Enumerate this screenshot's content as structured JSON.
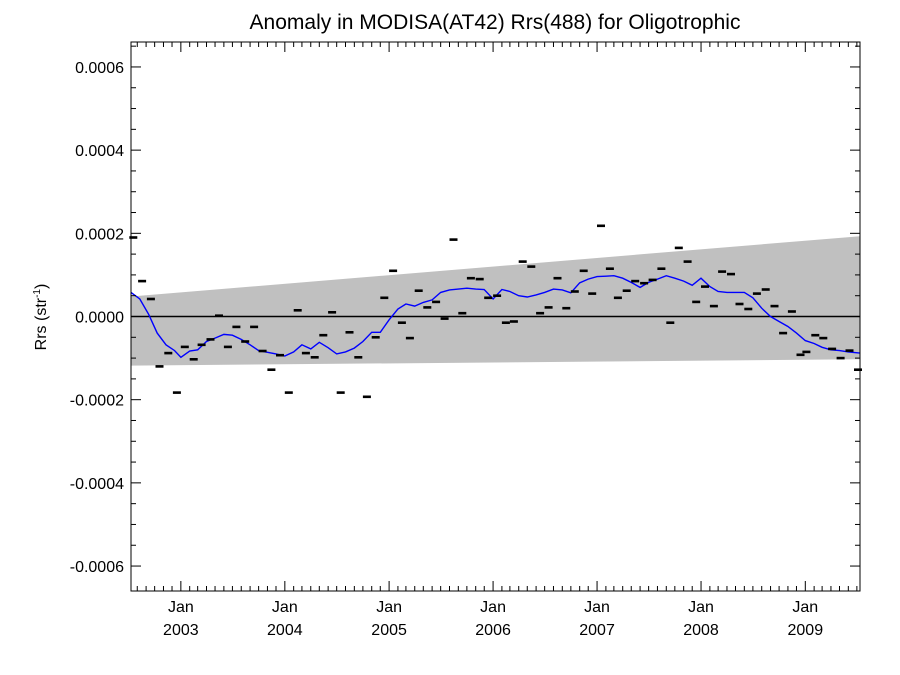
{
  "chart_data": {
    "type": "scatter",
    "title": "Anomaly in MODISA(AT42) Rrs(488) for Oligotrophic",
    "xlabel": "",
    "ylabel": "Rrs (str",
    "ylabel_superscript": "-1",
    "ylabel_suffix": ")",
    "ylim": [
      -0.00066,
      0.00066
    ],
    "xlim": [
      "2002-07-10",
      "2009-07-12"
    ],
    "yticks": [
      "0.0006",
      "0.0004",
      "0.0002",
      "0.0000",
      "-0.0002",
      "-0.0004",
      "-0.0006"
    ],
    "xticks": [
      {
        "month": "Jan",
        "year": "2003",
        "date": "2003-01-01"
      },
      {
        "month": "Jan",
        "year": "2004",
        "date": "2004-01-01"
      },
      {
        "month": "Jan",
        "year": "2005",
        "date": "2005-01-01"
      },
      {
        "month": "Jan",
        "year": "2006",
        "date": "2006-01-01"
      },
      {
        "month": "Jan",
        "year": "2007",
        "date": "2007-01-01"
      },
      {
        "month": "Jan",
        "year": "2008",
        "date": "2008-01-01"
      },
      {
        "month": "Jan",
        "year": "2009",
        "date": "2009-01-01"
      }
    ],
    "grid": false,
    "colors": {
      "band": "#c0c0c0",
      "line": "#0000ff",
      "points": "#000000",
      "zero": "#000000"
    },
    "band": {
      "upper": [
        [
          "2002-07-10",
          4.8e-05
        ],
        [
          "2009-07-12",
          0.000193
        ]
      ],
      "lower": [
        [
          "2002-07-10",
          -0.000118
        ],
        [
          "2009-07-12",
          -0.000103
        ]
      ]
    },
    "points": [
      [
        "2002-07-18",
        0.00019
      ],
      [
        "2002-08-18",
        8.5e-05
      ],
      [
        "2002-09-18",
        4.2e-05
      ],
      [
        "2002-10-18",
        -0.00012
      ],
      [
        "2002-11-18",
        -8.8e-05
      ],
      [
        "2002-12-18",
        -0.000183
      ],
      [
        "2003-01-15",
        -7.3e-05
      ],
      [
        "2003-02-15",
        -0.000103
      ],
      [
        "2003-03-15",
        -6.8e-05
      ],
      [
        "2003-04-15",
        -5.5e-05
      ],
      [
        "2003-05-15",
        2e-06
      ],
      [
        "2003-06-15",
        -7.3e-05
      ],
      [
        "2003-07-15",
        -2.5e-05
      ],
      [
        "2003-08-15",
        -6e-05
      ],
      [
        "2003-09-15",
        -2.5e-05
      ],
      [
        "2003-10-15",
        -8.3e-05
      ],
      [
        "2003-11-15",
        -0.000128
      ],
      [
        "2003-12-15",
        -9.3e-05
      ],
      [
        "2004-01-15",
        -0.000183
      ],
      [
        "2004-02-15",
        1.5e-05
      ],
      [
        "2004-03-15",
        -8.8e-05
      ],
      [
        "2004-04-15",
        -9.8e-05
      ],
      [
        "2004-05-15",
        -4.5e-05
      ],
      [
        "2004-06-15",
        1e-05
      ],
      [
        "2004-07-15",
        -0.000183
      ],
      [
        "2004-08-15",
        -3.8e-05
      ],
      [
        "2004-09-15",
        -9.8e-05
      ],
      [
        "2004-10-15",
        -0.000193
      ],
      [
        "2004-11-15",
        -5e-05
      ],
      [
        "2004-12-15",
        4.5e-05
      ],
      [
        "2005-01-15",
        0.00011
      ],
      [
        "2005-02-15",
        -1.5e-05
      ],
      [
        "2005-03-15",
        -5.2e-05
      ],
      [
        "2005-04-15",
        6.2e-05
      ],
      [
        "2005-05-15",
        2.2e-05
      ],
      [
        "2005-06-15",
        3.5e-05
      ],
      [
        "2005-07-15",
        -5e-06
      ],
      [
        "2005-08-15",
        0.000185
      ],
      [
        "2005-09-15",
        8e-06
      ],
      [
        "2005-10-15",
        9.2e-05
      ],
      [
        "2005-11-15",
        9e-05
      ],
      [
        "2005-12-15",
        4.5e-05
      ],
      [
        "2006-01-15",
        5e-05
      ],
      [
        "2006-02-15",
        -1.5e-05
      ],
      [
        "2006-03-15",
        -1.2e-05
      ],
      [
        "2006-04-15",
        0.000132
      ],
      [
        "2006-05-15",
        0.00012
      ],
      [
        "2006-06-15",
        8e-06
      ],
      [
        "2006-07-15",
        2.2e-05
      ],
      [
        "2006-08-15",
        9.2e-05
      ],
      [
        "2006-09-15",
        2e-05
      ],
      [
        "2006-10-15",
        6e-05
      ],
      [
        "2006-11-15",
        0.00011
      ],
      [
        "2006-12-15",
        5.5e-05
      ],
      [
        "2007-01-15",
        0.000218
      ],
      [
        "2007-02-15",
        0.000115
      ],
      [
        "2007-03-15",
        4.5e-05
      ],
      [
        "2007-04-15",
        6.2e-05
      ],
      [
        "2007-05-15",
        8.5e-05
      ],
      [
        "2007-06-15",
        8e-05
      ],
      [
        "2007-07-15",
        8.8e-05
      ],
      [
        "2007-08-15",
        0.000115
      ],
      [
        "2007-09-15",
        -1.5e-05
      ],
      [
        "2007-10-15",
        0.000165
      ],
      [
        "2007-11-15",
        0.000132
      ],
      [
        "2007-12-15",
        3.5e-05
      ],
      [
        "2008-01-15",
        7.2e-05
      ],
      [
        "2008-02-15",
        2.5e-05
      ],
      [
        "2008-03-15",
        0.000108
      ],
      [
        "2008-04-15",
        0.000102
      ],
      [
        "2008-05-15",
        3e-05
      ],
      [
        "2008-06-15",
        1.8e-05
      ],
      [
        "2008-07-15",
        5.5e-05
      ],
      [
        "2008-08-15",
        6.5e-05
      ],
      [
        "2008-09-15",
        2.5e-05
      ],
      [
        "2008-10-15",
        -4e-05
      ],
      [
        "2008-11-15",
        1.2e-05
      ],
      [
        "2008-12-15",
        -9.2e-05
      ],
      [
        "2009-01-05",
        -8.5e-05
      ],
      [
        "2009-02-05",
        -4.5e-05
      ],
      [
        "2009-03-05",
        -5.2e-05
      ],
      [
        "2009-04-05",
        -7.8e-05
      ],
      [
        "2009-05-05",
        -0.0001
      ],
      [
        "2009-06-05",
        -8.2e-05
      ],
      [
        "2009-07-05",
        -0.000128
      ]
    ],
    "series": [
      {
        "values": [
          [
            "2002-07-10",
            5.8e-05
          ],
          [
            "2002-08-10",
            4.2e-05
          ],
          [
            "2002-09-10",
            5e-06
          ],
          [
            "2002-10-10",
            -4e-05
          ],
          [
            "2002-11-10",
            -6.8e-05
          ],
          [
            "2002-12-10",
            -8.2e-05
          ],
          [
            "2003-01-01",
            -9.8e-05
          ],
          [
            "2003-02-01",
            -8.3e-05
          ],
          [
            "2003-03-01",
            -8e-05
          ],
          [
            "2003-04-01",
            -6e-05
          ],
          [
            "2003-05-01",
            -5.2e-05
          ],
          [
            "2003-06-01",
            -4.3e-05
          ],
          [
            "2003-07-01",
            -4.5e-05
          ],
          [
            "2003-08-01",
            -5.5e-05
          ],
          [
            "2003-09-01",
            -6.8e-05
          ],
          [
            "2003-10-01",
            -8.2e-05
          ],
          [
            "2003-11-01",
            -8.6e-05
          ],
          [
            "2003-12-01",
            -9e-05
          ],
          [
            "2004-01-01",
            -9.5e-05
          ],
          [
            "2004-02-01",
            -8.5e-05
          ],
          [
            "2004-03-01",
            -6.8e-05
          ],
          [
            "2004-04-01",
            -7.8e-05
          ],
          [
            "2004-05-01",
            -6.2e-05
          ],
          [
            "2004-06-01",
            -7.5e-05
          ],
          [
            "2004-07-01",
            -9e-05
          ],
          [
            "2004-08-01",
            -8.5e-05
          ],
          [
            "2004-09-01",
            -7.6e-05
          ],
          [
            "2004-10-01",
            -6e-05
          ],
          [
            "2004-11-01",
            -3.8e-05
          ],
          [
            "2004-12-01",
            -3.8e-05
          ],
          [
            "2005-01-01",
            -8e-06
          ],
          [
            "2005-02-01",
            1.8e-05
          ],
          [
            "2005-03-01",
            3e-05
          ],
          [
            "2005-04-01",
            2.5e-05
          ],
          [
            "2005-05-01",
            3.4e-05
          ],
          [
            "2005-06-01",
            4e-05
          ],
          [
            "2005-07-01",
            5.8e-05
          ],
          [
            "2005-08-01",
            6.4e-05
          ],
          [
            "2005-09-01",
            6.6e-05
          ],
          [
            "2005-10-01",
            6.8e-05
          ],
          [
            "2005-11-01",
            6.6e-05
          ],
          [
            "2005-12-01",
            6.5e-05
          ],
          [
            "2006-01-01",
            4.2e-05
          ],
          [
            "2006-02-01",
            6.5e-05
          ],
          [
            "2006-03-01",
            6e-05
          ],
          [
            "2006-04-01",
            5e-05
          ],
          [
            "2006-05-01",
            4.7e-05
          ],
          [
            "2006-06-01",
            5.2e-05
          ],
          [
            "2006-07-01",
            5.8e-05
          ],
          [
            "2006-08-01",
            6.6e-05
          ],
          [
            "2006-09-01",
            6.4e-05
          ],
          [
            "2006-10-01",
            5.7e-05
          ],
          [
            "2006-11-01",
            8.1e-05
          ],
          [
            "2006-12-01",
            9e-05
          ],
          [
            "2007-01-01",
            9.6e-05
          ],
          [
            "2007-02-01",
            9.7e-05
          ],
          [
            "2007-03-01",
            9.8e-05
          ],
          [
            "2007-04-01",
            9.2e-05
          ],
          [
            "2007-05-01",
            8.2e-05
          ],
          [
            "2007-06-01",
            7e-05
          ],
          [
            "2007-07-01",
            8.2e-05
          ],
          [
            "2007-08-01",
            9e-05
          ],
          [
            "2007-09-01",
            9.8e-05
          ],
          [
            "2007-10-01",
            9.2e-05
          ],
          [
            "2007-11-01",
            8.5e-05
          ],
          [
            "2007-12-01",
            7.5e-05
          ],
          [
            "2008-01-01",
            9.2e-05
          ],
          [
            "2008-02-01",
            7.2e-05
          ],
          [
            "2008-03-01",
            6e-05
          ],
          [
            "2008-04-01",
            5.8e-05
          ],
          [
            "2008-05-01",
            5.8e-05
          ],
          [
            "2008-06-01",
            5.8e-05
          ],
          [
            "2008-07-01",
            4.5e-05
          ],
          [
            "2008-08-01",
            2e-05
          ],
          [
            "2008-09-01",
            0.0
          ],
          [
            "2008-10-01",
            -1.2e-05
          ],
          [
            "2008-11-01",
            -2.4e-05
          ],
          [
            "2008-12-01",
            -4e-05
          ],
          [
            "2009-01-01",
            -5.8e-05
          ],
          [
            "2009-02-01",
            -6.5e-05
          ],
          [
            "2009-03-01",
            -7.4e-05
          ],
          [
            "2009-04-01",
            -8e-05
          ],
          [
            "2009-05-01",
            -8.2e-05
          ],
          [
            "2009-06-01",
            -8.5e-05
          ],
          [
            "2009-07-12",
            -8.8e-05
          ]
        ]
      }
    ]
  }
}
